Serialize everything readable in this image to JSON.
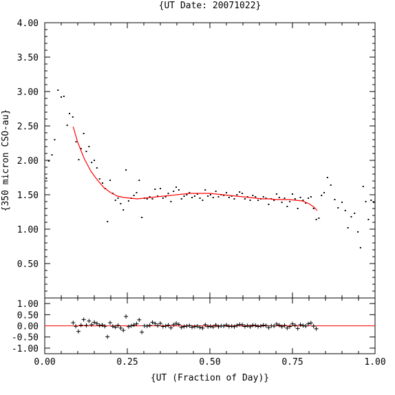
{
  "chart_data": [
    {
      "type": "scatter",
      "title": "{UT Date: 20071022}",
      "xlabel": "{UT (Fraction of Day)}",
      "ylabel": "{350 micron CSO-au}",
      "xlim": [
        0.0,
        1.0
      ],
      "ylim": [
        0.0,
        4.0
      ],
      "x_ticks": [
        "0.00",
        "0.25",
        "0.50",
        "0.75",
        "1.00"
      ],
      "y_ticks": [
        "0.50",
        "1.00",
        "1.50",
        "2.00",
        "2.50",
        "3.00",
        "3.50",
        "4.00"
      ],
      "grid": false,
      "series": [
        {
          "marker": "dot",
          "color": "#000000",
          "points": [
            [
              0.005,
              1.74
            ],
            [
              0.012,
              1.99
            ],
            [
              0.022,
              2.08
            ],
            [
              0.03,
              2.3
            ],
            [
              0.04,
              3.02
            ],
            [
              0.05,
              2.92
            ],
            [
              0.058,
              2.93
            ],
            [
              0.068,
              2.51
            ],
            [
              0.075,
              2.68
            ],
            [
              0.085,
              2.63
            ],
            [
              0.095,
              2.27
            ],
            [
              0.103,
              2.01
            ],
            [
              0.11,
              2.17
            ],
            [
              0.118,
              2.39
            ],
            [
              0.126,
              2.13
            ],
            [
              0.134,
              2.2
            ],
            [
              0.142,
              1.97
            ],
            [
              0.15,
              2.0
            ],
            [
              0.158,
              1.89
            ],
            [
              0.166,
              1.73
            ],
            [
              0.175,
              1.67
            ],
            [
              0.183,
              1.59
            ],
            [
              0.19,
              1.11
            ],
            [
              0.198,
              1.71
            ],
            [
              0.206,
              1.52
            ],
            [
              0.214,
              1.42
            ],
            [
              0.222,
              1.45
            ],
            [
              0.23,
              1.37
            ],
            [
              0.238,
              1.28
            ],
            [
              0.246,
              1.86
            ],
            [
              0.254,
              1.41
            ],
            [
              0.262,
              1.45
            ],
            [
              0.27,
              1.49
            ],
            [
              0.278,
              1.53
            ],
            [
              0.286,
              1.71
            ],
            [
              0.294,
              1.17
            ],
            [
              0.302,
              1.45
            ],
            [
              0.31,
              1.44
            ],
            [
              0.318,
              1.47
            ],
            [
              0.326,
              1.44
            ],
            [
              0.334,
              1.58
            ],
            [
              0.342,
              1.48
            ],
            [
              0.35,
              1.59
            ],
            [
              0.358,
              1.45
            ],
            [
              0.366,
              1.47
            ],
            [
              0.374,
              1.52
            ],
            [
              0.382,
              1.4
            ],
            [
              0.39,
              1.55
            ],
            [
              0.398,
              1.61
            ],
            [
              0.406,
              1.57
            ],
            [
              0.414,
              1.44
            ],
            [
              0.422,
              1.48
            ],
            [
              0.43,
              1.5
            ],
            [
              0.438,
              1.53
            ],
            [
              0.446,
              1.46
            ],
            [
              0.454,
              1.48
            ],
            [
              0.462,
              1.51
            ],
            [
              0.47,
              1.45
            ],
            [
              0.478,
              1.42
            ],
            [
              0.486,
              1.57
            ],
            [
              0.494,
              1.48
            ],
            [
              0.502,
              1.5
            ],
            [
              0.51,
              1.46
            ],
            [
              0.518,
              1.55
            ],
            [
              0.526,
              1.47
            ],
            [
              0.534,
              1.5
            ],
            [
              0.542,
              1.49
            ],
            [
              0.55,
              1.53
            ],
            [
              0.558,
              1.46
            ],
            [
              0.566,
              1.48
            ],
            [
              0.574,
              1.44
            ],
            [
              0.582,
              1.5
            ],
            [
              0.59,
              1.54
            ],
            [
              0.598,
              1.52
            ],
            [
              0.606,
              1.44
            ],
            [
              0.614,
              1.47
            ],
            [
              0.622,
              1.42
            ],
            [
              0.63,
              1.49
            ],
            [
              0.638,
              1.47
            ],
            [
              0.646,
              1.42
            ],
            [
              0.654,
              1.44
            ],
            [
              0.662,
              1.47
            ],
            [
              0.67,
              1.45
            ],
            [
              0.678,
              1.36
            ],
            [
              0.686,
              1.44
            ],
            [
              0.694,
              1.42
            ],
            [
              0.702,
              1.51
            ],
            [
              0.71,
              1.46
            ],
            [
              0.718,
              1.39
            ],
            [
              0.726,
              1.45
            ],
            [
              0.734,
              1.33
            ],
            [
              0.742,
              1.4
            ],
            [
              0.75,
              1.51
            ],
            [
              0.758,
              1.44
            ],
            [
              0.766,
              1.3
            ],
            [
              0.774,
              1.46
            ],
            [
              0.782,
              1.42
            ],
            [
              0.79,
              1.38
            ],
            [
              0.798,
              1.45
            ],
            [
              0.806,
              1.47
            ],
            [
              0.814,
              1.3
            ],
            [
              0.822,
              1.14
            ],
            [
              0.83,
              1.16
            ],
            [
              0.838,
              1.49
            ],
            [
              0.846,
              1.53
            ],
            [
              0.856,
              1.75
            ],
            [
              0.866,
              1.64
            ],
            [
              0.878,
              1.43
            ],
            [
              0.888,
              1.31
            ],
            [
              0.9,
              1.39
            ],
            [
              0.91,
              1.27
            ],
            [
              0.918,
              1.02
            ],
            [
              0.928,
              1.18
            ],
            [
              0.938,
              1.23
            ],
            [
              0.948,
              0.96
            ],
            [
              0.956,
              0.73
            ],
            [
              0.964,
              1.62
            ],
            [
              0.972,
              1.4
            ],
            [
              0.98,
              1.14
            ],
            [
              0.988,
              1.42
            ],
            [
              0.996,
              1.39
            ]
          ]
        },
        {
          "marker": "line",
          "color": "#ff0000",
          "points": [
            [
              0.086,
              2.49
            ],
            [
              0.1,
              2.26
            ],
            [
              0.12,
              2.02
            ],
            [
              0.14,
              1.84
            ],
            [
              0.16,
              1.71
            ],
            [
              0.18,
              1.6
            ],
            [
              0.2,
              1.53
            ],
            [
              0.22,
              1.48
            ],
            [
              0.24,
              1.46
            ],
            [
              0.26,
              1.45
            ],
            [
              0.28,
              1.44
            ],
            [
              0.3,
              1.45
            ],
            [
              0.32,
              1.46
            ],
            [
              0.34,
              1.47
            ],
            [
              0.36,
              1.48
            ],
            [
              0.38,
              1.49
            ],
            [
              0.4,
              1.5
            ],
            [
              0.42,
              1.51
            ],
            [
              0.44,
              1.52
            ],
            [
              0.46,
              1.52
            ],
            [
              0.48,
              1.52
            ],
            [
              0.5,
              1.52
            ],
            [
              0.52,
              1.51
            ],
            [
              0.54,
              1.5
            ],
            [
              0.56,
              1.49
            ],
            [
              0.58,
              1.48
            ],
            [
              0.6,
              1.47
            ],
            [
              0.62,
              1.46
            ],
            [
              0.64,
              1.45
            ],
            [
              0.66,
              1.44
            ],
            [
              0.68,
              1.44
            ],
            [
              0.7,
              1.43
            ],
            [
              0.72,
              1.43
            ],
            [
              0.74,
              1.43
            ],
            [
              0.76,
              1.42
            ],
            [
              0.78,
              1.41
            ],
            [
              0.8,
              1.37
            ],
            [
              0.815,
              1.32
            ],
            [
              0.825,
              1.27
            ]
          ]
        }
      ]
    },
    {
      "type": "scatter",
      "xlim": [
        0.0,
        1.0
      ],
      "ylim": [
        -1.25,
        1.25
      ],
      "y_ticks": [
        "1.00",
        "0.50",
        "0.00",
        "-0.50",
        "-1.00"
      ],
      "zero_line": {
        "y": 0.0,
        "color": "#ff0000"
      },
      "series": [
        {
          "marker": "plus",
          "color": "#000000",
          "points": [
            [
              0.086,
              0.14
            ],
            [
              0.094,
              -0.02
            ],
            [
              0.102,
              -0.25
            ],
            [
              0.11,
              0.03
            ],
            [
              0.118,
              0.28
            ],
            [
              0.126,
              0.02
            ],
            [
              0.134,
              0.22
            ],
            [
              0.142,
              0.05
            ],
            [
              0.15,
              0.16
            ],
            [
              0.158,
              0.1
            ],
            [
              0.166,
              0.02
            ],
            [
              0.174,
              0.04
            ],
            [
              0.182,
              -0.02
            ],
            [
              0.19,
              -0.49
            ],
            [
              0.198,
              0.14
            ],
            [
              0.206,
              -0.02
            ],
            [
              0.214,
              -0.06
            ],
            [
              0.222,
              0.02
            ],
            [
              0.23,
              -0.1
            ],
            [
              0.238,
              -0.2
            ],
            [
              0.246,
              0.42
            ],
            [
              0.254,
              -0.04
            ],
            [
              0.262,
              0.0
            ],
            [
              0.27,
              0.04
            ],
            [
              0.278,
              0.09
            ],
            [
              0.286,
              0.27
            ],
            [
              0.294,
              -0.28
            ],
            [
              0.302,
              0.0
            ],
            [
              0.31,
              -0.01
            ],
            [
              0.318,
              0.02
            ],
            [
              0.326,
              0.16
            ],
            [
              0.334,
              0.1
            ],
            [
              0.342,
              0.01
            ],
            [
              0.35,
              0.11
            ],
            [
              0.358,
              -0.03
            ],
            [
              0.366,
              -0.01
            ],
            [
              0.374,
              0.03
            ],
            [
              0.382,
              -0.09
            ],
            [
              0.39,
              0.05
            ],
            [
              0.398,
              0.11
            ],
            [
              0.406,
              0.06
            ],
            [
              0.414,
              -0.07
            ],
            [
              0.422,
              -0.03
            ],
            [
              0.43,
              -0.01
            ],
            [
              0.438,
              0.01
            ],
            [
              0.446,
              -0.06
            ],
            [
              0.454,
              -0.04
            ],
            [
              0.462,
              -0.01
            ],
            [
              0.47,
              -0.07
            ],
            [
              0.478,
              -0.1
            ],
            [
              0.486,
              0.05
            ],
            [
              0.494,
              -0.04
            ],
            [
              0.502,
              -0.02
            ],
            [
              0.51,
              -0.05
            ],
            [
              0.518,
              0.04
            ],
            [
              0.526,
              -0.04
            ],
            [
              0.534,
              0.0
            ],
            [
              0.542,
              -0.01
            ],
            [
              0.55,
              0.04
            ],
            [
              0.558,
              -0.03
            ],
            [
              0.566,
              -0.01
            ],
            [
              0.574,
              -0.04
            ],
            [
              0.582,
              0.02
            ],
            [
              0.59,
              0.06
            ],
            [
              0.598,
              0.05
            ],
            [
              0.606,
              -0.03
            ],
            [
              0.614,
              0.01
            ],
            [
              0.622,
              -0.04
            ],
            [
              0.63,
              0.03
            ],
            [
              0.638,
              0.02
            ],
            [
              0.646,
              -0.03
            ],
            [
              0.654,
              -0.01
            ],
            [
              0.662,
              0.03
            ],
            [
              0.67,
              0.01
            ],
            [
              0.678,
              -0.08
            ],
            [
              0.686,
              0.0
            ],
            [
              0.694,
              -0.01
            ],
            [
              0.702,
              0.08
            ],
            [
              0.71,
              0.03
            ],
            [
              0.718,
              -0.04
            ],
            [
              0.726,
              0.02
            ],
            [
              0.734,
              -0.1
            ],
            [
              0.742,
              -0.03
            ],
            [
              0.75,
              0.09
            ],
            [
              0.758,
              0.02
            ],
            [
              0.766,
              -0.12
            ],
            [
              0.774,
              0.05
            ],
            [
              0.782,
              0.01
            ],
            [
              0.79,
              -0.01
            ],
            [
              0.798,
              0.09
            ],
            [
              0.806,
              0.13
            ],
            [
              0.814,
              -0.01
            ],
            [
              0.822,
              -0.13
            ]
          ]
        }
      ]
    }
  ]
}
